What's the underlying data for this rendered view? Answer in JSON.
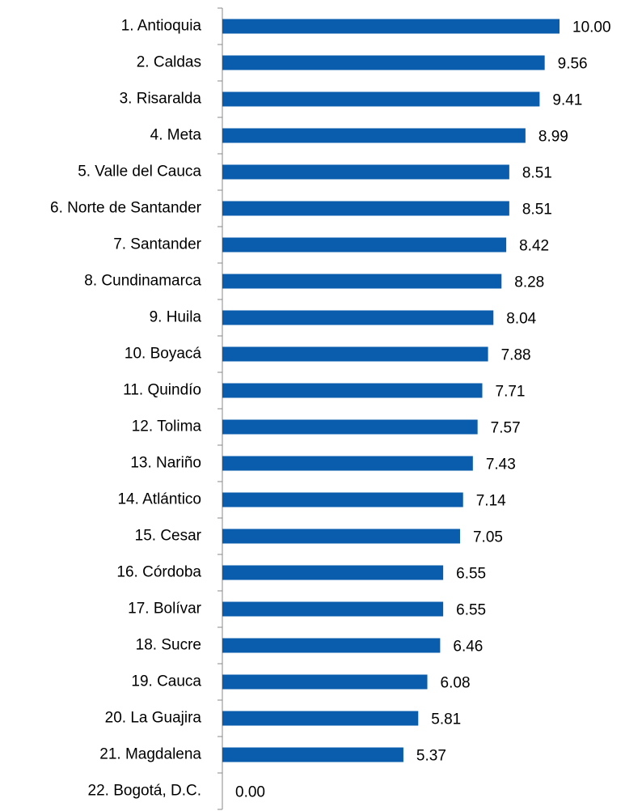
{
  "chart_data": {
    "type": "bar",
    "orientation": "horizontal",
    "color": "#0a5cad",
    "categories": [
      "1. Antioquia",
      "2. Caldas",
      "3. Risaralda",
      "4. Meta",
      "5. Valle del Cauca",
      "6. Norte de Santander",
      "7. Santander",
      "8. Cundinamarca",
      "9. Huila",
      "10. Boyacá",
      "11. Quindío",
      "12. Tolima",
      "13. Nariño",
      "14. Atlántico",
      "15. Cesar",
      "16. Córdoba",
      "17. Bolívar",
      "18. Sucre",
      "19. Cauca",
      "20. La Guajira",
      "21. Magdalena",
      "22. Bogotá, D.C."
    ],
    "values": [
      10.0,
      9.56,
      9.41,
      8.99,
      8.51,
      8.51,
      8.42,
      8.28,
      8.04,
      7.88,
      7.71,
      7.57,
      7.43,
      7.14,
      7.05,
      6.55,
      6.55,
      6.46,
      6.08,
      5.81,
      5.37,
      0
    ],
    "value_labels": [
      "10.00",
      "9.56",
      "9.41",
      "8.99",
      "8.51",
      "8.51",
      "8.42",
      "8.28",
      "8.04",
      "7.88",
      "7.71",
      "7.57",
      "7.43",
      "7.14",
      "7.05",
      "6.55",
      "6.55",
      "6.46",
      "6.08",
      "5.81",
      "5.37",
      "0.00"
    ]
  }
}
